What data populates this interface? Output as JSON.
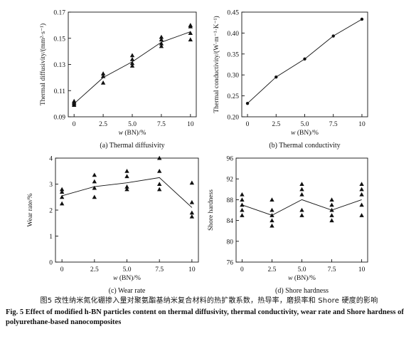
{
  "figure": {
    "caption_zh": "图5   改性纳米氮化硼掺入量对聚氨酯基纳米复合材料的热扩散系数，热导率，磨损率和 Shore 硬度的影响",
    "caption_en": "Fig. 5   Effect of modified h-BN particles content on thermal diffusivity, thermal conductivity, wear rate and Shore hardness of polyurethane-based nanocomposites"
  },
  "chart_data": [
    {
      "id": "a",
      "type": "scatter",
      "subcaption": "(a) Thermal diffusivity",
      "xlabel": "w (BN)/%",
      "ylabel": "Thermal diffusivity/(mm²·s⁻¹)",
      "xlim": [
        -0.5,
        10.5
      ],
      "ylim": [
        0.09,
        0.17
      ],
      "xticks": [
        0,
        2.5,
        5.0,
        7.5,
        10
      ],
      "xtick_labels": [
        "0",
        "2.5",
        "5.0",
        "7.5",
        "10"
      ],
      "yticks": [
        0.09,
        0.11,
        0.13,
        0.15,
        0.17
      ],
      "ytick_labels": [
        "0.09",
        "0.11",
        "0.13",
        "0.15",
        "0.17"
      ],
      "mean_line": {
        "x": [
          0,
          2.5,
          5.0,
          7.5,
          10
        ],
        "y": [
          0.1,
          0.12,
          0.132,
          0.147,
          0.155
        ]
      },
      "points": [
        [
          0,
          0.099
        ],
        [
          0,
          0.1
        ],
        [
          0,
          0.101
        ],
        [
          0,
          0.102
        ],
        [
          2.5,
          0.116
        ],
        [
          2.5,
          0.121
        ],
        [
          2.5,
          0.123
        ],
        [
          5.0,
          0.129
        ],
        [
          5.0,
          0.131
        ],
        [
          5.0,
          0.134
        ],
        [
          5.0,
          0.137
        ],
        [
          7.5,
          0.144
        ],
        [
          7.5,
          0.146
        ],
        [
          7.5,
          0.149
        ],
        [
          7.5,
          0.151
        ],
        [
          10,
          0.149
        ],
        [
          10,
          0.154
        ],
        [
          10,
          0.159
        ],
        [
          10,
          0.16
        ]
      ]
    },
    {
      "id": "b",
      "type": "line",
      "subcaption": "(b) Thermal conductivity",
      "xlabel": "w (BN)/%",
      "ylabel": "Thermal conductivity/(W·m⁻¹·K⁻¹)",
      "xlim": [
        -0.5,
        10.5
      ],
      "ylim": [
        0.2,
        0.45
      ],
      "xticks": [
        0,
        2.5,
        5.0,
        7.5,
        10
      ],
      "xtick_labels": [
        "0",
        "2.5",
        "5.0",
        "7.5",
        "10"
      ],
      "yticks": [
        0.2,
        0.25,
        0.3,
        0.35,
        0.4,
        0.45
      ],
      "ytick_labels": [
        "0.20",
        "0.25",
        "0.30",
        "0.35",
        "0.40",
        "0.45"
      ],
      "mean_line": {
        "x": [
          0,
          2.5,
          5.0,
          7.5,
          10
        ],
        "y": [
          0.232,
          0.295,
          0.338,
          0.393,
          0.433
        ]
      },
      "points": [
        [
          0,
          0.232
        ],
        [
          2.5,
          0.295
        ],
        [
          5.0,
          0.338
        ],
        [
          7.5,
          0.393
        ],
        [
          10,
          0.433
        ]
      ]
    },
    {
      "id": "c",
      "type": "scatter",
      "subcaption": "(c) Wear rate",
      "xlabel": "w (BN)/%",
      "ylabel": "Wear rate/%",
      "xlim": [
        -0.5,
        10.5
      ],
      "ylim": [
        0,
        4
      ],
      "xticks": [
        0,
        2.5,
        5.0,
        7.5,
        10
      ],
      "xtick_labels": [
        "0",
        "2.5",
        "5.0",
        "7.5",
        "10"
      ],
      "yticks": [
        0,
        1,
        2,
        3,
        4
      ],
      "ytick_labels": [
        "0",
        "1",
        "2",
        "3",
        "4"
      ],
      "mean_line": {
        "x": [
          0,
          2.5,
          5.0,
          7.5,
          10
        ],
        "y": [
          2.55,
          2.9,
          3.05,
          3.25,
          2.1
        ]
      },
      "points": [
        [
          0,
          2.25
        ],
        [
          0,
          2.5
        ],
        [
          0,
          2.7
        ],
        [
          0,
          2.8
        ],
        [
          2.5,
          2.5
        ],
        [
          2.5,
          2.85
        ],
        [
          2.5,
          3.1
        ],
        [
          2.5,
          3.35
        ],
        [
          5.0,
          2.8
        ],
        [
          5.0,
          2.9
        ],
        [
          5.0,
          3.3
        ],
        [
          5.0,
          3.5
        ],
        [
          7.5,
          2.8
        ],
        [
          7.5,
          3.0
        ],
        [
          7.5,
          3.5
        ],
        [
          7.5,
          4.0
        ],
        [
          10,
          1.75
        ],
        [
          10,
          1.9
        ],
        [
          10,
          2.3
        ],
        [
          10,
          3.05
        ]
      ]
    },
    {
      "id": "d",
      "type": "scatter",
      "subcaption": "(d) Shore hardness",
      "xlabel": "w (BN)/%",
      "ylabel": "Shore hardness",
      "xlim": [
        -0.5,
        10.5
      ],
      "ylim": [
        76,
        96
      ],
      "xticks": [
        0,
        2.5,
        5.0,
        7.5,
        10
      ],
      "xtick_labels": [
        "0",
        "2.5",
        "5.0",
        "7.5",
        "10"
      ],
      "yticks": [
        76,
        80,
        84,
        88,
        92,
        96
      ],
      "ytick_labels": [
        "76",
        "80",
        "84",
        "88",
        "92",
        "96"
      ],
      "mean_line": {
        "x": [
          0,
          2.5,
          5.0,
          7.5,
          10
        ],
        "y": [
          87,
          85,
          88,
          86,
          88
        ]
      },
      "points": [
        [
          0,
          85
        ],
        [
          0,
          86
        ],
        [
          0,
          87
        ],
        [
          0,
          88
        ],
        [
          0,
          89
        ],
        [
          2.5,
          83
        ],
        [
          2.5,
          84
        ],
        [
          2.5,
          85
        ],
        [
          2.5,
          86
        ],
        [
          2.5,
          88
        ],
        [
          5.0,
          85
        ],
        [
          5.0,
          86
        ],
        [
          5.0,
          89
        ],
        [
          5.0,
          90
        ],
        [
          5.0,
          91
        ],
        [
          7.5,
          84
        ],
        [
          7.5,
          85
        ],
        [
          7.5,
          86
        ],
        [
          7.5,
          87
        ],
        [
          7.5,
          88
        ],
        [
          10,
          85
        ],
        [
          10,
          87
        ],
        [
          10,
          89
        ],
        [
          10,
          90
        ],
        [
          10,
          91
        ]
      ]
    }
  ]
}
